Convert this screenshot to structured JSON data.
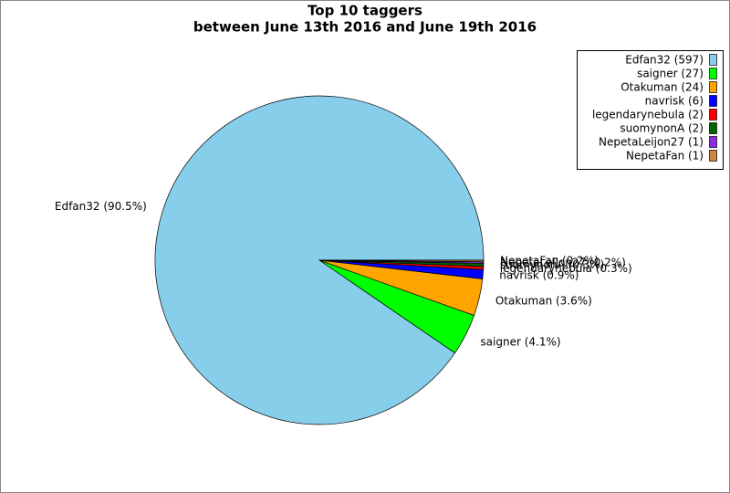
{
  "chart_data": {
    "type": "pie",
    "title": "Top 10 taggers",
    "subtitle": "between June 13th 2016 and June 19th 2016",
    "categories": [
      "Edfan32",
      "saigner",
      "Otakuman",
      "navrisk",
      "legendarynebula",
      "suomynonA",
      "NepetaLeijon27",
      "NepetaFan"
    ],
    "values": [
      597,
      27,
      24,
      6,
      2,
      2,
      1,
      1
    ],
    "value_labels": [
      "Edfan32 (597)",
      "saigner (27)",
      "Otakuman (24)",
      "navrisk (6)",
      "legendarynebula (2)",
      "suomynonA (2)",
      "NepetaLeijon27 (1)",
      "NepetaFan (1)"
    ],
    "percent_labels": [
      "Edfan32 (90.5%)",
      "saigner (4.1%)",
      "Otakuman (3.6%)",
      "navrisk (0.9%)",
      "legendarynebula (0.3%)",
      "suomynonA (0.3%)",
      "NepetaLeijon27 (0.2%)",
      "NepetaFan (0.2%)"
    ],
    "colors": [
      "#87ceeb",
      "#00ff00",
      "#ffa500",
      "#0000ff",
      "#ff0000",
      "#006400",
      "#8a2be2",
      "#cd853f"
    ],
    "legend": "upper right"
  }
}
